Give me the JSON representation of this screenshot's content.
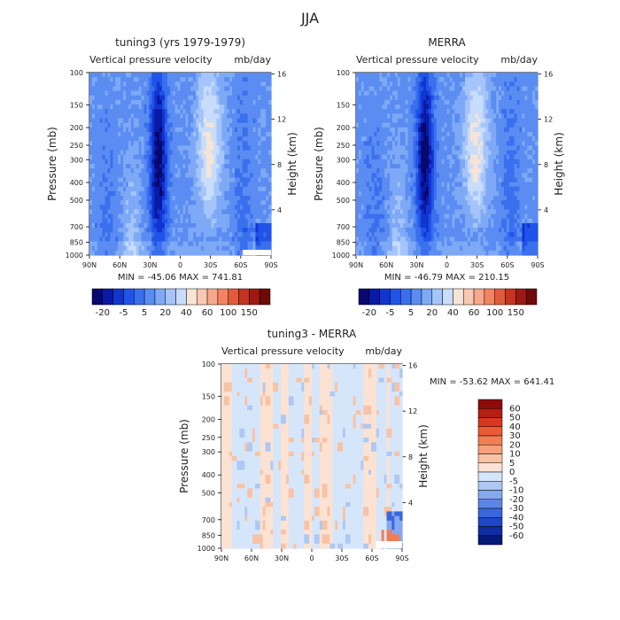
{
  "figure": {
    "title": "JJA",
    "yticks_pressure": [
      "100",
      "150",
      "200",
      "250",
      "300",
      "400",
      "500",
      "700",
      "850",
      "1000"
    ],
    "height_ticks": [
      "4",
      "8",
      "12",
      "16"
    ],
    "xticks": [
      "90N",
      "60N",
      "30N",
      "0",
      "30S",
      "60S",
      "90S"
    ]
  },
  "panels": [
    {
      "id": "model",
      "title": "tuning3 (yrs 1979-1979)",
      "subtitle_left": "Vertical pressure velocity",
      "subtitle_right": "mb/day",
      "ylabel": "Pressure (mb)",
      "ylabel_right": "Height (km)",
      "stats": "MIN = -45.06   MAX = 741.81"
    },
    {
      "id": "obs",
      "title": "MERRA",
      "subtitle_left": "Vertical pressure velocity",
      "subtitle_right": "mb/day",
      "ylabel": "Pressure (mb)",
      "ylabel_right": "Height (km)",
      "stats": "MIN = -46.79   MAX = 210.15"
    },
    {
      "id": "diff",
      "title": "tuning3 - MERRA",
      "subtitle_left": "Vertical pressure velocity",
      "subtitle_right": "mb/day",
      "ylabel": "Pressure (mb)",
      "ylabel_right": "Height (km)",
      "stats": "MIN = -53.62   MAX = 641.41"
    }
  ],
  "colorbars": {
    "field": {
      "colors": [
        "#08086e",
        "#0a1aa6",
        "#1035d0",
        "#2053e8",
        "#3a6fee",
        "#5a8cf2",
        "#7ea9f6",
        "#a4c4fa",
        "#c8dcfc",
        "#f6e4d6",
        "#f8c8b2",
        "#f6a88a",
        "#f28462",
        "#e25a3c",
        "#c43420",
        "#9c1a12",
        "#6e0a08"
      ],
      "labels": [
        "-20",
        "-5",
        "5",
        "20",
        "40",
        "60",
        "100",
        "150"
      ]
    },
    "diff": {
      "colors": [
        "#8c0a0a",
        "#b41e14",
        "#d8371e",
        "#ec5a36",
        "#f27d52",
        "#f6a07c",
        "#f8c2a4",
        "#fbe2d2",
        "#d6e6fa",
        "#aec8f4",
        "#86a8ee",
        "#5c86e6",
        "#3a66dc",
        "#1e46c8",
        "#0e2ca6",
        "#061878"
      ],
      "labels": [
        "60",
        "50",
        "40",
        "30",
        "20",
        "10",
        "5",
        "0",
        "-5",
        "-10",
        "-20",
        "-30",
        "-40",
        "-50",
        "-60"
      ]
    }
  },
  "chart_data": [
    {
      "type": "heatmap",
      "title": "tuning3 (yrs 1979-1979)",
      "xlabel": "",
      "ylabel": "Pressure (mb)",
      "units": "mb/day",
      "x_ticks": [
        "90N",
        "60N",
        "30N",
        "0",
        "30S",
        "60S",
        "90S"
      ],
      "y_ticks": [
        100,
        150,
        200,
        250,
        300,
        400,
        500,
        700,
        850,
        1000
      ],
      "y_scale": "log",
      "min": -45.06,
      "max": 741.81
    },
    {
      "type": "heatmap",
      "title": "MERRA",
      "xlabel": "",
      "ylabel": "Pressure (mb)",
      "units": "mb/day",
      "x_ticks": [
        "90N",
        "60N",
        "30N",
        "0",
        "30S",
        "60S",
        "90S"
      ],
      "y_ticks": [
        100,
        150,
        200,
        250,
        300,
        400,
        500,
        700,
        850,
        1000
      ],
      "y_scale": "log",
      "min": -46.79,
      "max": 210.15
    },
    {
      "type": "heatmap",
      "title": "tuning3 - MERRA",
      "xlabel": "",
      "ylabel": "Pressure (mb)",
      "units": "mb/day",
      "x_ticks": [
        "90N",
        "60N",
        "30N",
        "0",
        "30S",
        "60S",
        "90S"
      ],
      "y_ticks": [
        100,
        150,
        200,
        250,
        300,
        400,
        500,
        700,
        850,
        1000
      ],
      "y_scale": "log",
      "min": -53.62,
      "max": 641.41
    }
  ]
}
